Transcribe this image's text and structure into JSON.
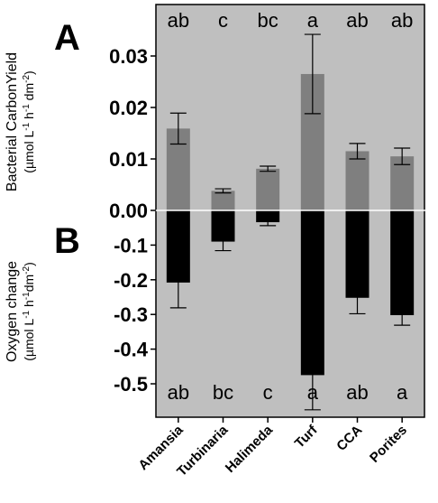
{
  "figure": {
    "panel_labels": [
      "A",
      "B"
    ],
    "background_color": "#bfbfbf",
    "top_bar_color": "#7f7f7f",
    "bottom_bar_color": "#000000",
    "zero_line_color": "#ffffff"
  },
  "chart_data": {
    "type": "bar",
    "categories": [
      "Amansia",
      "Turbinaria",
      "Halimeda",
      "Turf",
      "CCA",
      "Porites"
    ],
    "grid": false,
    "legend": "none",
    "panels": [
      {
        "panel": "A",
        "ylabel_line1": "Bacterial CarbonYield",
        "ylabel_line2_parts": [
          "(µmol L",
          "-1",
          " h",
          "-1",
          " dm",
          "-2",
          ")"
        ],
        "ylim": [
          0,
          0.036
        ],
        "yticks": [
          0.0,
          0.01,
          0.02,
          0.03
        ],
        "ytick_labels": [
          "0.00",
          "0.01",
          "0.02",
          "0.03"
        ],
        "values": [
          0.0159,
          0.0038,
          0.0081,
          0.0265,
          0.0115,
          0.0105
        ],
        "errors": [
          0.003,
          0.0004,
          0.0005,
          0.0077,
          0.0015,
          0.0016
        ],
        "significance": [
          "ab",
          "c",
          "bc",
          "a",
          "ab",
          "ab"
        ],
        "color": "#7f7f7f"
      },
      {
        "panel": "B",
        "ylabel_line1": "Oxygen change",
        "ylabel_line2_parts": [
          "(µmol L",
          "-1",
          " h",
          "-1",
          "dm",
          "-2",
          ")"
        ],
        "ylim": [
          -0.56,
          0
        ],
        "yticks": [
          -0.1,
          -0.2,
          -0.3,
          -0.4,
          -0.5
        ],
        "ytick_labels": [
          "-0.1",
          "-0.2",
          "-0.3",
          "-0.4",
          "-0.5"
        ],
        "values": [
          -0.208,
          -0.09,
          -0.034,
          -0.475,
          -0.252,
          -0.302
        ],
        "errors": [
          0.073,
          0.026,
          0.01,
          0.1,
          0.046,
          0.029
        ],
        "significance": [
          "ab",
          "bc",
          "c",
          "a",
          "ab",
          "a"
        ],
        "color": "#000000"
      }
    ]
  }
}
